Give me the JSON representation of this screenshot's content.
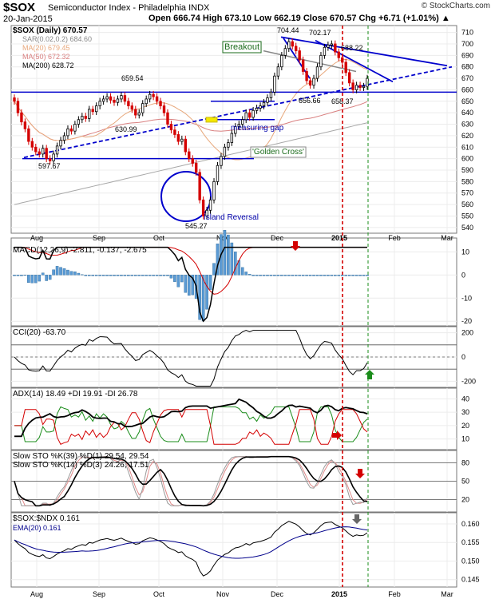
{
  "header": {
    "symbol": "$SOX",
    "name": "Semiconductor Index - Philadelphia  INDX",
    "date": "20-Jan-2015",
    "brand": "© StockCharts.com",
    "ohlc": "Open 666.74  High 673.10  Low 662.19  Close 670.57  Chg +6.71 (+1.01%) ▲"
  },
  "colors": {
    "up": "#000000",
    "down": "#d40000",
    "ma20": "#e8a87c",
    "ma50": "#d98080",
    "ma200": "#a8a8a8",
    "trend": "#0000cc",
    "macd_hist": "#5b9bd5",
    "accent_red": "#d40000",
    "accent_green": "#1a8c1a"
  },
  "chart_data": [
    {
      "type": "candlestick",
      "title": "$SOX (Daily) 670.57",
      "legend": [
        "SAR(0.02,0.2) 684.60",
        "MA(20) 679.45",
        "MA(50) 672.32",
        "MA(200) 628.72"
      ],
      "x_ticks": [
        "Aug",
        "Sep",
        "Oct",
        "Nov",
        "Dec",
        "2015",
        "Feb",
        "Mar"
      ],
      "y_ticks": [
        540,
        550,
        560,
        570,
        580,
        590,
        600,
        610,
        620,
        630,
        640,
        650,
        660,
        670,
        680,
        690,
        700,
        710
      ],
      "ylim": [
        535,
        716
      ],
      "close": [
        650,
        640,
        632,
        626,
        615,
        610,
        606,
        604,
        609,
        600,
        598,
        604,
        611,
        616,
        620,
        626,
        624,
        630,
        634,
        637,
        635,
        643,
        641,
        646,
        650,
        652,
        654,
        651,
        649,
        652,
        655,
        650,
        646,
        643,
        638,
        640,
        648,
        652,
        656,
        654,
        650,
        646,
        640,
        630,
        625,
        621,
        615,
        617,
        606,
        600,
        596,
        588,
        564,
        550,
        555,
        564,
        580,
        594,
        602,
        610,
        614,
        622,
        628,
        630,
        634,
        640,
        636,
        642,
        644,
        646,
        649,
        653,
        658,
        672,
        680,
        690,
        696,
        702,
        698,
        694,
        686,
        676,
        668,
        664,
        670,
        680,
        690,
        697,
        699,
        700,
        693,
        688,
        684,
        675,
        666,
        660,
        664,
        662,
        663,
        670
      ],
      "annotations": [
        "597.67",
        "659.54",
        "630.99",
        "545.27",
        "704.44",
        "702.17",
        "688.22",
        "656.66",
        "658.37",
        "Breakout",
        "measuring gap",
        "'Golden Cross'",
        "Island Reversal"
      ]
    },
    {
      "type": "line",
      "title": "MACD(12,26,9) -2.811, -0.137, -2.675",
      "y_ticks": [
        "10",
        "0",
        "-10",
        "-20"
      ],
      "ylim": [
        -22,
        16
      ]
    },
    {
      "type": "line",
      "title": "CCI(20) -63.70",
      "y_ticks": [
        "200",
        "0",
        "-200"
      ],
      "ylim": [
        -250,
        250
      ]
    },
    {
      "type": "line",
      "title": "ADX(14) 18.49  +DI 19.91  -DI 26.78",
      "y_ticks": [
        "40",
        "30",
        "20",
        "10"
      ],
      "ylim": [
        2,
        48
      ]
    },
    {
      "type": "line",
      "title": "Slow STO %K(39) %D(1) 29.54, 29.54",
      "subtitle": "Slow STO %K(14) %D(3) 24.26, 17.51",
      "y_ticks": [
        "80",
        "50",
        "20"
      ],
      "ylim": [
        0,
        100
      ]
    },
    {
      "type": "line",
      "title": "$SOX:$NDX 0.161",
      "legend": [
        "EMA(20) 0.161"
      ],
      "y_ticks": [
        "0.160",
        "0.155",
        "0.150",
        "0.145"
      ],
      "ylim": [
        0.143,
        0.163
      ]
    }
  ]
}
